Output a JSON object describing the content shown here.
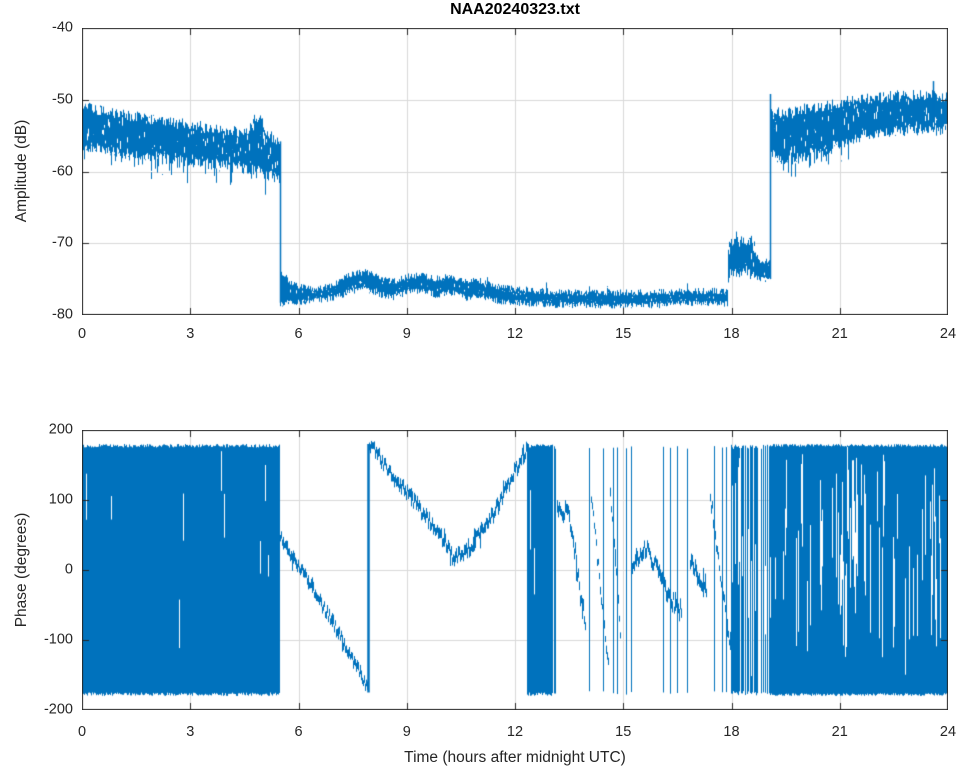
{
  "figure": {
    "background": "#ffffff",
    "line_color": "#0072BD",
    "axes_color": "#262626",
    "grid_color": "#d9d9d9",
    "tick_label_color": "#262626"
  },
  "chart_data": [
    {
      "type": "line",
      "title": "NAA20240323.txt",
      "xlabel": "",
      "ylabel": "Amplitude (dB)",
      "xlim": [
        0,
        24
      ],
      "ylim": [
        -80,
        -40
      ],
      "xticks": [
        0,
        3,
        6,
        9,
        12,
        15,
        18,
        21,
        24
      ],
      "xtick_labels": [
        "0",
        "3",
        "6",
        "9",
        "12",
        "15",
        "18",
        "21",
        "24"
      ],
      "yticks": [
        -40,
        -50,
        -60,
        -70,
        -80
      ],
      "ytick_labels": [
        "-40",
        "-50",
        "-60",
        "-70",
        "-80"
      ],
      "grid": true,
      "segments": [
        {
          "kind": "band",
          "jitter": 0.8,
          "split_prob": 0.45,
          "spike_prob": 0.18,
          "spike": 2.5,
          "top": [
            [
              0,
              -51.0
            ],
            [
              0.8,
              -51.8
            ],
            [
              1.6,
              -52.5
            ],
            [
              2.4,
              -53.1
            ],
            [
              3.2,
              -53.7
            ],
            [
              4.0,
              -54.3
            ],
            [
              4.6,
              -54.6
            ],
            [
              4.78,
              -52.6
            ],
            [
              5.0,
              -52.9
            ],
            [
              5.12,
              -54.9
            ],
            [
              5.45,
              -55.6
            ]
          ],
          "bottom": [
            [
              0,
              -56.2
            ],
            [
              0.6,
              -57.0
            ],
            [
              1.2,
              -57.5
            ],
            [
              1.8,
              -57.8
            ],
            [
              2.4,
              -58.2
            ],
            [
              3.0,
              -58.6
            ],
            [
              3.6,
              -59.0
            ],
            [
              4.2,
              -59.4
            ],
            [
              4.8,
              -59.8
            ],
            [
              5.45,
              -61.0
            ]
          ]
        },
        {
          "kind": "vline",
          "t": 5.48,
          "v0": -55.8,
          "v1": -78.3,
          "w": 1.5
        },
        {
          "kind": "band",
          "jitter": 0.45,
          "split_prob": 0.3,
          "spike_up_prob": 0.015,
          "spike_up": 1.8,
          "top": [
            [
              5.5,
              -73.8
            ],
            [
              5.62,
              -74.6
            ],
            [
              5.8,
              -75.6
            ],
            [
              6.2,
              -76.2
            ],
            [
              6.6,
              -76.3
            ],
            [
              7.0,
              -75.6
            ],
            [
              7.5,
              -74.2
            ],
            [
              7.9,
              -74.0
            ],
            [
              8.3,
              -75.0
            ],
            [
              8.6,
              -75.4
            ],
            [
              9.0,
              -74.6
            ],
            [
              9.4,
              -74.4
            ],
            [
              9.8,
              -74.9
            ],
            [
              10.2,
              -74.6
            ],
            [
              10.6,
              -75.3
            ],
            [
              11.0,
              -75.2
            ],
            [
              11.4,
              -75.9
            ],
            [
              12.0,
              -76.3
            ],
            [
              12.6,
              -76.6
            ],
            [
              13.2,
              -76.8
            ],
            [
              14.0,
              -76.8
            ],
            [
              15.0,
              -76.9
            ],
            [
              16.0,
              -76.8
            ],
            [
              17.0,
              -76.7
            ],
            [
              17.88,
              -76.6
            ]
          ],
          "bottom": [
            [
              5.5,
              -78.4
            ],
            [
              6.0,
              -78.2
            ],
            [
              7.0,
              -77.6
            ],
            [
              7.5,
              -76.6
            ],
            [
              7.9,
              -76.4
            ],
            [
              8.3,
              -77.2
            ],
            [
              8.6,
              -77.6
            ],
            [
              9.0,
              -76.8
            ],
            [
              9.4,
              -76.6
            ],
            [
              9.8,
              -77.2
            ],
            [
              10.2,
              -76.9
            ],
            [
              10.6,
              -77.6
            ],
            [
              11.0,
              -77.5
            ],
            [
              11.4,
              -78.0
            ],
            [
              12.0,
              -78.3
            ],
            [
              13.0,
              -78.6
            ],
            [
              14.0,
              -78.6
            ],
            [
              15.0,
              -78.7
            ],
            [
              16.0,
              -78.6
            ],
            [
              17.0,
              -78.4
            ],
            [
              17.88,
              -78.4
            ]
          ]
        },
        {
          "kind": "band",
          "jitter": 0.9,
          "split_prob": 0.25,
          "top": [
            [
              17.9,
              -70.8
            ],
            [
              17.96,
              -69.2
            ],
            [
              18.04,
              -70.2
            ],
            [
              18.12,
              -68.9
            ],
            [
              18.2,
              -70.0
            ],
            [
              18.28,
              -69.1
            ],
            [
              18.36,
              -70.1
            ],
            [
              18.45,
              -69.3
            ],
            [
              18.55,
              -69.8
            ],
            [
              18.65,
              -70.6
            ],
            [
              18.72,
              -71.6
            ]
          ],
          "bottom": [
            [
              17.9,
              -74.6
            ],
            [
              18.0,
              -73.8
            ],
            [
              18.1,
              -74.4
            ],
            [
              18.2,
              -73.9
            ],
            [
              18.3,
              -74.5
            ],
            [
              18.4,
              -73.9
            ],
            [
              18.5,
              -74.3
            ],
            [
              18.6,
              -74.5
            ],
            [
              18.72,
              -74.8
            ]
          ]
        },
        {
          "kind": "band",
          "jitter": 0.4,
          "split_prob": 0.2,
          "top": [
            [
              18.72,
              -72.2
            ],
            [
              18.85,
              -72.6
            ],
            [
              19.05,
              -72.4
            ]
          ],
          "bottom": [
            [
              18.72,
              -74.8
            ],
            [
              18.9,
              -75.2
            ],
            [
              19.05,
              -75.0
            ]
          ]
        },
        {
          "kind": "vline",
          "t": 19.07,
          "v0": -49.2,
          "v1": -75.0,
          "w": 1.5
        },
        {
          "kind": "band",
          "jitter": 0.8,
          "split_prob": 0.4,
          "spike_prob": 0.12,
          "spike": 3.0,
          "spike_range": [
            19.4,
            21.35
          ],
          "top": [
            [
              19.09,
              -51.3
            ],
            [
              19.4,
              -52.1
            ],
            [
              19.7,
              -51.7
            ],
            [
              20.0,
              -51.3
            ],
            [
              20.4,
              -51.0
            ],
            [
              20.8,
              -50.6
            ],
            [
              21.2,
              -50.2
            ],
            [
              21.6,
              -49.9
            ],
            [
              22.0,
              -49.7
            ],
            [
              22.5,
              -49.5
            ],
            [
              23.0,
              -49.4
            ],
            [
              23.5,
              -49.4
            ],
            [
              24,
              -49.6
            ]
          ],
          "bottom": [
            [
              19.09,
              -57.2
            ],
            [
              19.35,
              -58.9
            ],
            [
              19.6,
              -57.8
            ],
            [
              19.9,
              -58.4
            ],
            [
              20.2,
              -57.3
            ],
            [
              20.5,
              -57.9
            ],
            [
              20.8,
              -56.5
            ],
            [
              21.1,
              -56.1
            ],
            [
              21.4,
              -55.3
            ],
            [
              21.7,
              -54.9
            ],
            [
              22.0,
              -54.6
            ],
            [
              22.4,
              -54.4
            ],
            [
              22.8,
              -54.3
            ],
            [
              23.2,
              -54.2
            ],
            [
              23.6,
              -54.3
            ],
            [
              24,
              -54.1
            ]
          ]
        },
        {
          "kind": "vline",
          "t": 23.58,
          "v0": -47.4,
          "v1": -52.5,
          "w": 1.5
        }
      ]
    },
    {
      "type": "line",
      "title": "",
      "xlabel": "Time (hours after midnight UTC)",
      "ylabel": "Phase (degrees)",
      "xlim": [
        0,
        24
      ],
      "ylim": [
        -200,
        200
      ],
      "xticks": [
        0,
        3,
        6,
        9,
        12,
        15,
        18,
        21,
        24
      ],
      "xtick_labels": [
        "0",
        "3",
        "6",
        "9",
        "12",
        "15",
        "18",
        "21",
        "24"
      ],
      "yticks": [
        200,
        100,
        0,
        -100,
        -200
      ],
      "ytick_labels": [
        "200",
        "100",
        "0",
        "-100",
        "-200"
      ],
      "grid": true,
      "segments": [
        {
          "kind": "noise",
          "t0": 0,
          "t1": 5.45,
          "lo": -180,
          "hi": 180,
          "density": 1,
          "edge_jitter": 5,
          "slit_prob": 0.05,
          "slit_len": 0.25
        },
        {
          "kind": "curve",
          "points": [
            [
              5.49,
              46
            ],
            [
              5.65,
              30
            ],
            [
              5.85,
              14
            ],
            [
              6.1,
              0
            ],
            [
              6.35,
              -22
            ],
            [
              6.6,
              -46
            ],
            [
              6.85,
              -68
            ],
            [
              7.1,
              -90
            ],
            [
              7.35,
              -115
            ],
            [
              7.6,
              -138
            ],
            [
              7.78,
              -155
            ],
            [
              7.9,
              -172
            ]
          ],
          "thickness": 14,
          "jitter": 7
        },
        {
          "kind": "vline",
          "t": 7.92,
          "v0": -175,
          "v1": 180,
          "w": 2.5
        },
        {
          "kind": "curve",
          "points": [
            [
              7.94,
              179
            ],
            [
              8.2,
              164
            ],
            [
              8.5,
              141
            ],
            [
              8.9,
              117
            ],
            [
              9.3,
              91
            ],
            [
              9.7,
              63
            ],
            [
              10.0,
              43
            ],
            [
              10.3,
              16
            ],
            [
              10.55,
              24
            ],
            [
              10.8,
              36
            ],
            [
              11.1,
              56
            ],
            [
              11.4,
              82
            ],
            [
              11.7,
              112
            ],
            [
              12.0,
              142
            ],
            [
              12.32,
              174
            ]
          ],
          "thickness": 16,
          "jitter": 8
        },
        {
          "kind": "noise",
          "t0": 12.33,
          "t1": 13.02,
          "lo": -180,
          "hi": 180,
          "density": 1,
          "edge_jitter": 5,
          "slit_prob": 0.07,
          "slit_len": 0.3
        },
        {
          "kind": "wraplines",
          "times": [
            13.07,
            13.1
          ]
        },
        {
          "kind": "curve",
          "points": [
            [
              13.16,
              98
            ],
            [
              13.3,
              76
            ],
            [
              13.42,
              90
            ],
            [
              13.55,
              55
            ],
            [
              13.68,
              15
            ],
            [
              13.8,
              -35
            ],
            [
              13.95,
              -72
            ]
          ],
          "thickness": 18,
          "jitter": 12
        },
        {
          "kind": "curve",
          "points": [
            [
              14.1,
              110
            ],
            [
              14.3,
              5
            ],
            [
              14.5,
              -100
            ],
            [
              14.58,
              -138
            ]
          ],
          "thickness": 13,
          "jitter": 9
        },
        {
          "kind": "curve",
          "points": [
            [
              14.62,
              118
            ],
            [
              14.78,
              5
            ],
            [
              14.92,
              -98
            ]
          ],
          "thickness": 13,
          "jitter": 9
        },
        {
          "kind": "wraplines",
          "times": [
            14.06,
            14.45,
            14.72,
            14.82,
            15.08,
            15.21
          ]
        },
        {
          "kind": "curve",
          "points": [
            [
              15.25,
              3
            ],
            [
              15.45,
              24
            ],
            [
              15.65,
              29
            ],
            [
              15.85,
              10
            ],
            [
              16.05,
              -14
            ],
            [
              16.25,
              -34
            ],
            [
              16.45,
              -50
            ],
            [
              16.6,
              -60
            ]
          ],
          "thickness": 18,
          "jitter": 11
        },
        {
          "kind": "wraplines",
          "times": [
            16.11,
            16.29,
            16.48,
            16.76
          ]
        },
        {
          "kind": "curve",
          "points": [
            [
              16.85,
              12
            ],
            [
              17.05,
              -5
            ],
            [
              17.3,
              -28
            ]
          ],
          "thickness": 20,
          "jitter": 10
        },
        {
          "kind": "curve",
          "points": [
            [
              17.4,
              110
            ],
            [
              17.55,
              45
            ],
            [
              17.7,
              -15
            ],
            [
              17.85,
              -70
            ],
            [
              17.96,
              -105
            ]
          ],
          "thickness": 14,
          "jitter": 10
        },
        {
          "kind": "wraplines",
          "times": [
            17.51,
            17.73,
            17.86
          ]
        },
        {
          "kind": "noise",
          "t0": 17.98,
          "t1": 19.05,
          "lo": -179,
          "hi": 179,
          "density": 0.8,
          "edge_jitter": 6,
          "slit_prob": 0.35,
          "slit_len": 0.5
        },
        {
          "kind": "noise",
          "t0": 19.05,
          "t1": 24,
          "lo": -180,
          "hi": 180,
          "density": 1,
          "edge_jitter": 4,
          "slit_prob": 0.25,
          "slit_len": 0.45,
          "slit_clusters": [
            [
              20.95,
              21.5,
              0.6
            ],
            [
              23.3,
              23.65,
              0.55
            ]
          ]
        }
      ]
    }
  ]
}
